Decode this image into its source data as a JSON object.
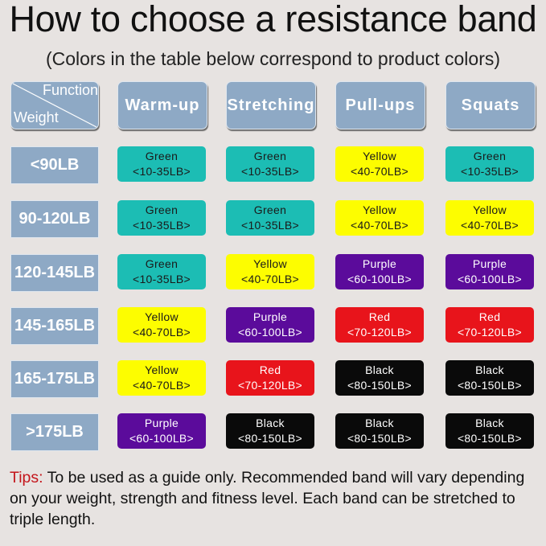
{
  "title": "How to choose a resistance band",
  "subtitle": "(Colors in the table below correspond to product colors)",
  "table": {
    "corner": {
      "function_label": "Function",
      "weight_label": "Weight"
    },
    "header_color": "#8ea9c5",
    "functions": [
      "Warm-up",
      "Stretching",
      "Pull-ups",
      "Squats"
    ],
    "band_colors": {
      "Green": {
        "bg": "#1cbdb4",
        "text": "#1a1a1a"
      },
      "Yellow": {
        "bg": "#fdfd00",
        "text": "#1a1a1a"
      },
      "Purple": {
        "bg": "#5b0b9b",
        "text": "#ffffff"
      },
      "Red": {
        "bg": "#e8141b",
        "text": "#ffffff"
      },
      "Black": {
        "bg": "#0a0a0a",
        "text": "#ffffff"
      }
    },
    "rows": [
      {
        "weight": "<90LB",
        "cells": [
          {
            "color": "Green",
            "range": "<10-35LB>"
          },
          {
            "color": "Green",
            "range": "<10-35LB>"
          },
          {
            "color": "Yellow",
            "range": "<40-70LB>"
          },
          {
            "color": "Green",
            "range": "<10-35LB>"
          }
        ]
      },
      {
        "weight": "90-120LB",
        "cells": [
          {
            "color": "Green",
            "range": "<10-35LB>"
          },
          {
            "color": "Green",
            "range": "<10-35LB>"
          },
          {
            "color": "Yellow",
            "range": "<40-70LB>"
          },
          {
            "color": "Yellow",
            "range": "<40-70LB>"
          }
        ]
      },
      {
        "weight": "120-145LB",
        "cells": [
          {
            "color": "Green",
            "range": "<10-35LB>"
          },
          {
            "color": "Yellow",
            "range": "<40-70LB>"
          },
          {
            "color": "Purple",
            "range": "<60-100LB>"
          },
          {
            "color": "Purple",
            "range": "<60-100LB>"
          }
        ]
      },
      {
        "weight": "145-165LB",
        "cells": [
          {
            "color": "Yellow",
            "range": "<40-70LB>"
          },
          {
            "color": "Purple",
            "range": "<60-100LB>"
          },
          {
            "color": "Red",
            "range": "<70-120LB>"
          },
          {
            "color": "Red",
            "range": "<70-120LB>"
          }
        ]
      },
      {
        "weight": "165-175LB",
        "cells": [
          {
            "color": "Yellow",
            "range": "<40-70LB>"
          },
          {
            "color": "Red",
            "range": "<70-120LB>"
          },
          {
            "color": "Black",
            "range": "<80-150LB>"
          },
          {
            "color": "Black",
            "range": "<80-150LB>"
          }
        ]
      },
      {
        "weight": ">175LB",
        "cells": [
          {
            "color": "Purple",
            "range": "<60-100LB>"
          },
          {
            "color": "Black",
            "range": "<80-150LB>"
          },
          {
            "color": "Black",
            "range": "<80-150LB>"
          },
          {
            "color": "Black",
            "range": "<80-150LB>"
          }
        ]
      }
    ]
  },
  "tips": {
    "label": "Tips:",
    "text": " To be used as a guide only. Recommended band will vary depending on your weight, strength and fitness level. Each band can be stretched to triple length.",
    "label_color": "#c4161c"
  }
}
